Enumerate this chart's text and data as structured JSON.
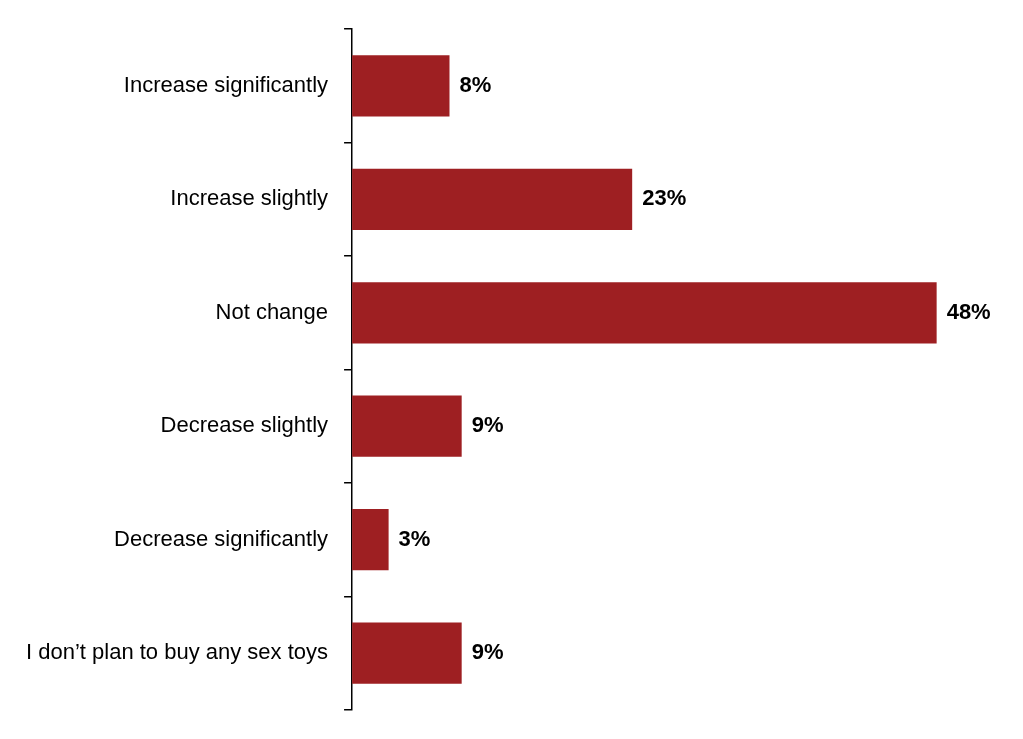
{
  "chart_data": {
    "type": "bar",
    "orientation": "horizontal",
    "categories": [
      "Increase significantly",
      "Increase slightly",
      "Not change",
      "Decrease slightly",
      "Decrease significantly",
      "I don’t plan to buy any sex toys"
    ],
    "values": [
      8,
      23,
      48,
      9,
      3,
      9
    ],
    "value_labels": [
      "8%",
      "23%",
      "48%",
      "9%",
      "3%",
      "9%"
    ],
    "color": "#9e1f22",
    "tick_labels": "y"
  }
}
